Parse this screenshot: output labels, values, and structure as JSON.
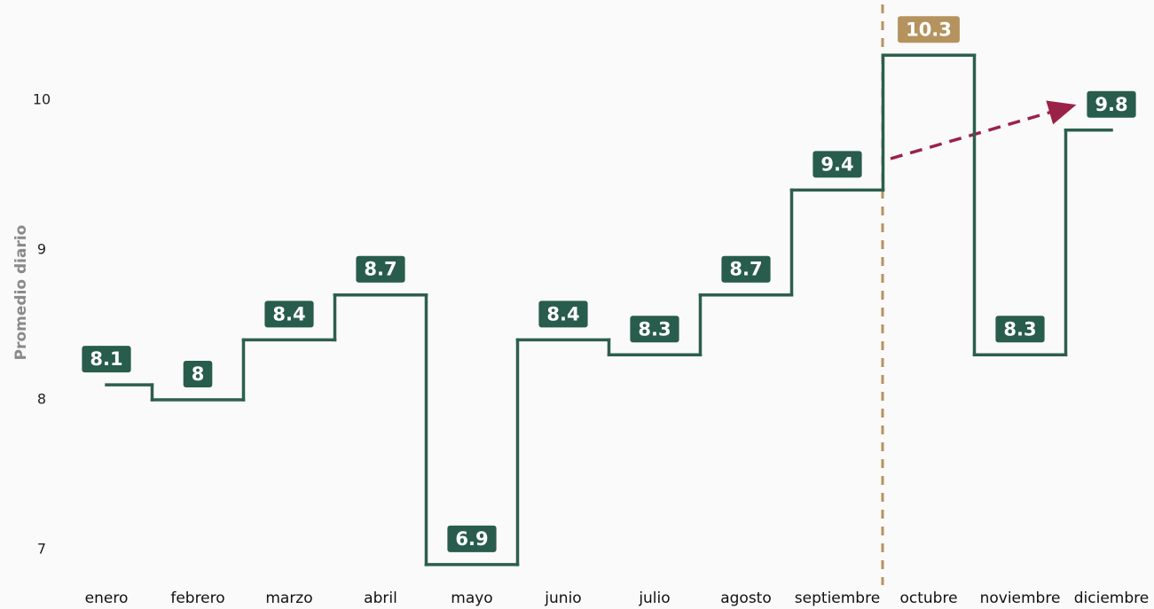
{
  "chart_data": {
    "type": "step",
    "y_label": "Promedio diario",
    "categories": [
      "enero",
      "febrero",
      "marzo",
      "abril",
      "mayo",
      "junio",
      "julio",
      "agosto",
      "septiembre",
      "octubre",
      "noviembre",
      "diciembre"
    ],
    "values": [
      8.1,
      8,
      8.4,
      8.7,
      6.9,
      8.4,
      8.3,
      8.7,
      9.4,
      10.3,
      8.3,
      9.8
    ],
    "color": "#2d5e4c",
    "label_colors": [
      "#285c4d",
      "#285c4d",
      "#285c4d",
      "#285c4d",
      "#285c4d",
      "#285c4d",
      "#285c4d",
      "#285c4d",
      "#285c4d",
      "#b5935e",
      "#285c4d",
      "#285c4d"
    ],
    "ylim": [
      6.8,
      10.5
    ],
    "yticks": [
      7,
      8,
      9,
      10
    ],
    "grid": false
  }
}
